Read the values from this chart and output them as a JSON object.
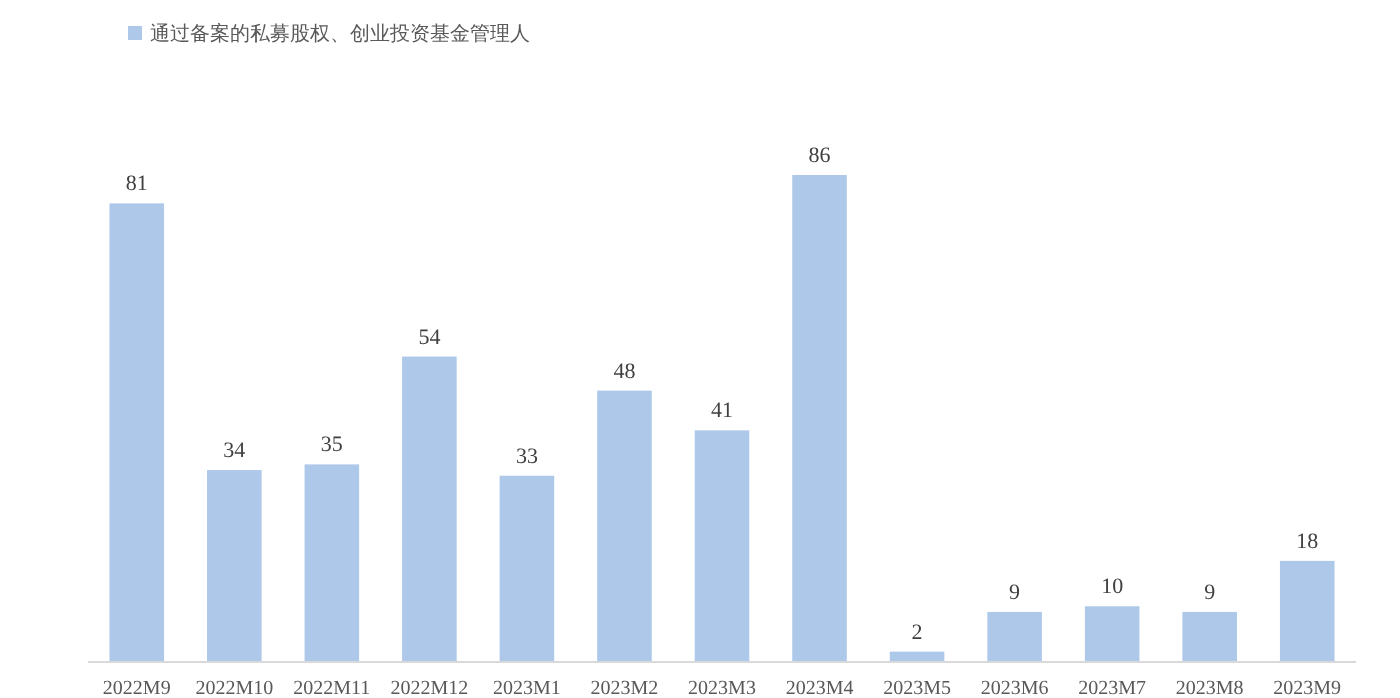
{
  "chart_data": {
    "type": "bar",
    "categories": [
      "2022M9",
      "2022M10",
      "2022M11",
      "2022M12",
      "2023M1",
      "2023M2",
      "2023M3",
      "2023M4",
      "2023M5",
      "2023M6",
      "2023M7",
      "2023M8",
      "2023M9"
    ],
    "series": [
      {
        "name": "通过备案的私募股权、创业投资基金管理人",
        "color": "#aec8ea",
        "values": [
          81,
          34,
          35,
          54,
          33,
          48,
          41,
          86,
          2,
          9,
          10,
          9,
          18
        ]
      }
    ],
    "data_labels": true,
    "legend": "top left"
  }
}
